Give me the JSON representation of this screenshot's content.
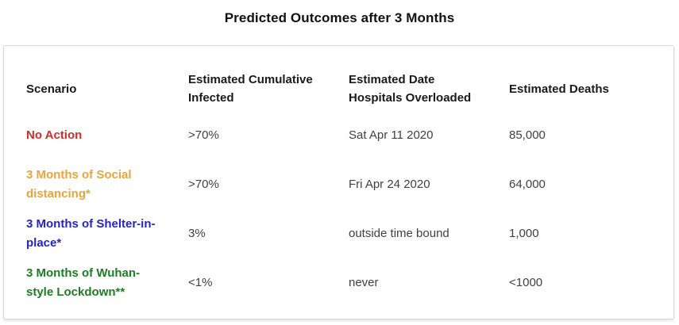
{
  "page": {
    "title": "Predicted Outcomes after 3 Months"
  },
  "table": {
    "columns": [
      {
        "label": "Scenario"
      },
      {
        "label": "Estimated Cumulative\nInfected"
      },
      {
        "label": "Estimated Date\nHospitals Overloaded"
      },
      {
        "label": "Estimated Deaths"
      }
    ],
    "rows": [
      {
        "scenario": "No Action",
        "color": "#d32a2a",
        "infected": ">70%",
        "hospitals_overloaded": "Sat Apr 11 2020",
        "deaths": "85,000"
      },
      {
        "scenario": "3 Months of Social\ndistancing*",
        "color": "#e9a43b",
        "infected": ">70%",
        "hospitals_overloaded": "Fri Apr 24 2020",
        "deaths": "64,000"
      },
      {
        "scenario": "3 Months of Shelter-in-\nplace*",
        "color": "#2525c4",
        "infected": "3%",
        "hospitals_overloaded": "outside time bound",
        "deaths": "1,000"
      },
      {
        "scenario": "3 Months of Wuhan-\nstyle Lockdown**",
        "color": "#1d7d24",
        "infected": "<1%",
        "hospitals_overloaded": "never",
        "deaths": "<1000"
      }
    ]
  },
  "chart_data": {
    "type": "table",
    "title": "Predicted Outcomes after 3 Months",
    "columns": [
      "Scenario",
      "Estimated Cumulative Infected",
      "Estimated Date Hospitals Overloaded",
      "Estimated Deaths"
    ],
    "rows": [
      [
        "No Action",
        ">70%",
        "Sat Apr 11 2020",
        "85,000"
      ],
      [
        "3 Months of Social distancing*",
        ">70%",
        "Fri Apr 24 2020",
        "64,000"
      ],
      [
        "3 Months of Shelter-in-place*",
        "3%",
        "outside time bound",
        "1,000"
      ],
      [
        "3 Months of Wuhan-style Lockdown**",
        "<1%",
        "never",
        "<1000"
      ]
    ],
    "row_label_colors": [
      "#d32a2a",
      "#e9a43b",
      "#2525c4",
      "#1d7d24"
    ],
    "layout_hints": {
      "grid": false,
      "legend": false,
      "header_bold": true
    }
  }
}
